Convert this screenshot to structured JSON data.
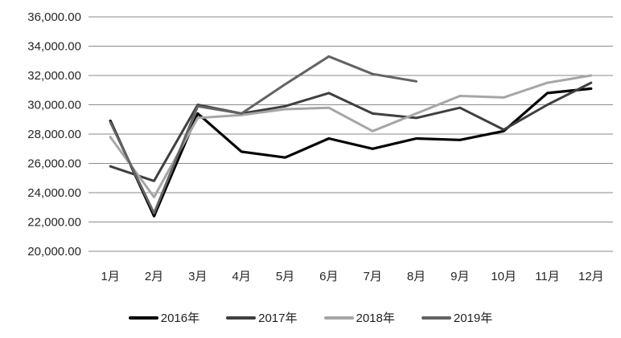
{
  "page": {
    "background": "#ffffff"
  },
  "chart_data": {
    "type": "line",
    "title": "",
    "xlabel": "",
    "ylabel": "",
    "categories": [
      "1月",
      "2月",
      "3月",
      "4月",
      "5月",
      "6月",
      "7月",
      "8月",
      "9月",
      "10月",
      "11月",
      "12月"
    ],
    "series": [
      {
        "name": "2016年",
        "color": "#000000",
        "stroke_width": 3.2,
        "values": [
          28900,
          22400,
          29400,
          26800,
          26400,
          27700,
          27000,
          27700,
          27600,
          28200,
          30800,
          31100
        ]
      },
      {
        "name": "2017年",
        "color": "#3f3f3f",
        "stroke_width": 3,
        "values": [
          25800,
          24800,
          30000,
          29400,
          29900,
          30800,
          29400,
          29100,
          29800,
          28300,
          30000,
          31500
        ]
      },
      {
        "name": "2018年",
        "color": "#a6a6a6",
        "stroke_width": 3,
        "values": [
          27800,
          23700,
          29100,
          29300,
          29700,
          29800,
          28200,
          29400,
          30600,
          30500,
          31500,
          32000
        ]
      },
      {
        "name": "2019年",
        "color": "#636363",
        "stroke_width": 3,
        "values": [
          28800,
          22600,
          29900,
          29400,
          31400,
          33300,
          32100,
          31600,
          null,
          null,
          null,
          null
        ]
      }
    ],
    "y_axis": {
      "min": 20000,
      "max": 36000,
      "step": 2000,
      "tick_labels": [
        "36,000.00",
        "34,000.00",
        "32,000.00",
        "30,000.00",
        "28,000.00",
        "26,000.00",
        "24,000.00",
        "22,000.00",
        "20,000.00"
      ]
    },
    "grid": true,
    "legend_position": "bottom",
    "colors": {
      "gridline": "#8a8a8a",
      "axis_text": "#262626"
    }
  }
}
